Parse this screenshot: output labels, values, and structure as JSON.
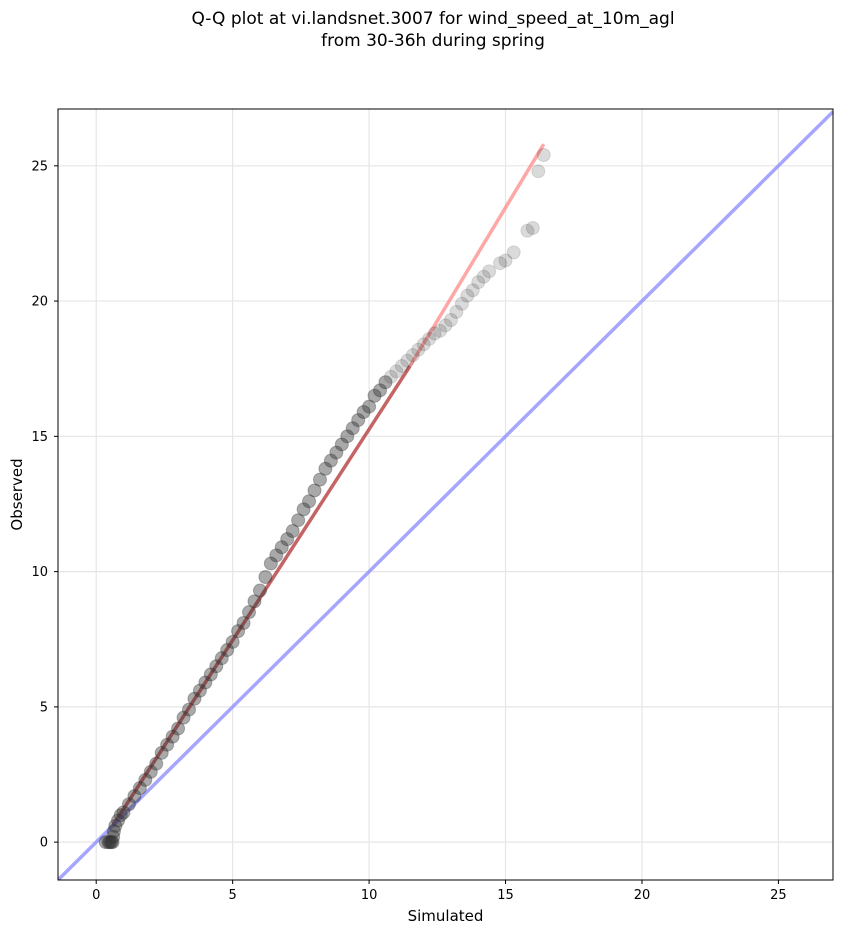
{
  "chart_data": {
    "type": "scatter",
    "title": "Q-Q plot at vi.landsnet.3007 for wind_speed_at_10m_agl",
    "subtitle": "from 30-36h during spring",
    "xlabel": "Simulated",
    "ylabel": "Observed",
    "xlim": [
      -1.4,
      27.0
    ],
    "ylim": [
      -1.4,
      27.1
    ],
    "xticks": [
      0,
      5,
      10,
      15,
      20,
      25
    ],
    "yticks": [
      0,
      5,
      10,
      15,
      20,
      25
    ],
    "xtick_labels": [
      "0",
      "5",
      "10",
      "15",
      "20",
      "25"
    ],
    "ytick_labels": [
      "0",
      "5",
      "10",
      "15",
      "20",
      "25"
    ],
    "grid": true,
    "series": [
      {
        "kind": "points",
        "color": "#333333",
        "x": [
          0.35,
          0.45,
          0.5,
          0.55,
          0.6,
          0.62,
          0.65,
          0.7,
          0.8,
          0.9,
          1.0,
          1.2,
          1.4,
          1.6,
          1.8,
          2.0,
          2.2,
          2.4,
          2.6,
          2.8,
          3.0,
          3.2,
          3.4,
          3.6,
          3.8,
          4.0,
          4.2,
          4.4,
          4.6,
          4.8,
          5.0,
          5.2,
          5.4,
          5.6,
          5.8,
          6.0,
          6.2,
          6.4,
          6.6,
          6.8,
          7.0,
          7.2,
          7.4,
          7.6,
          7.8,
          8.0,
          8.2,
          8.4,
          8.6,
          8.8,
          9.0,
          9.2,
          9.4,
          9.6,
          9.8,
          10.0,
          10.2,
          10.4,
          10.6,
          10.8,
          11.0,
          11.2,
          11.4,
          11.6,
          11.8,
          12.0,
          12.2,
          12.4,
          12.6,
          12.8,
          13.0,
          13.2,
          13.4,
          13.6,
          13.8,
          14.0,
          14.2,
          14.4,
          14.8,
          15.0,
          15.3,
          15.8,
          16.0,
          16.2,
          16.4
        ],
        "y": [
          0.0,
          0.0,
          0.0,
          0.0,
          0.0,
          0.2,
          0.4,
          0.6,
          0.8,
          1.0,
          1.1,
          1.4,
          1.7,
          2.0,
          2.3,
          2.6,
          2.9,
          3.3,
          3.6,
          3.9,
          4.2,
          4.6,
          4.9,
          5.3,
          5.6,
          5.9,
          6.2,
          6.5,
          6.8,
          7.1,
          7.4,
          7.8,
          8.1,
          8.5,
          8.9,
          9.3,
          9.8,
          10.3,
          10.6,
          10.9,
          11.2,
          11.5,
          11.9,
          12.3,
          12.6,
          13.0,
          13.4,
          13.8,
          14.1,
          14.4,
          14.7,
          15.0,
          15.3,
          15.6,
          15.9,
          16.1,
          16.5,
          16.7,
          17.0,
          17.2,
          17.4,
          17.6,
          17.8,
          18.0,
          18.2,
          18.4,
          18.6,
          18.8,
          18.9,
          19.1,
          19.3,
          19.6,
          19.9,
          20.2,
          20.4,
          20.7,
          20.9,
          21.1,
          21.4,
          21.5,
          21.8,
          22.6,
          22.7,
          24.8,
          25.4
        ]
      },
      {
        "kind": "line",
        "color": "#b03030",
        "x": [
          0.6,
          11.5
        ],
        "y": [
          0.6,
          17.6
        ]
      },
      {
        "kind": "line",
        "color": "#ff8888",
        "x": [
          11.5,
          16.4
        ],
        "y": [
          17.6,
          25.8
        ]
      },
      {
        "kind": "line",
        "color": "#8888ff",
        "x": [
          -1.4,
          27.0
        ],
        "y": [
          -1.4,
          27.0
        ]
      }
    ]
  }
}
